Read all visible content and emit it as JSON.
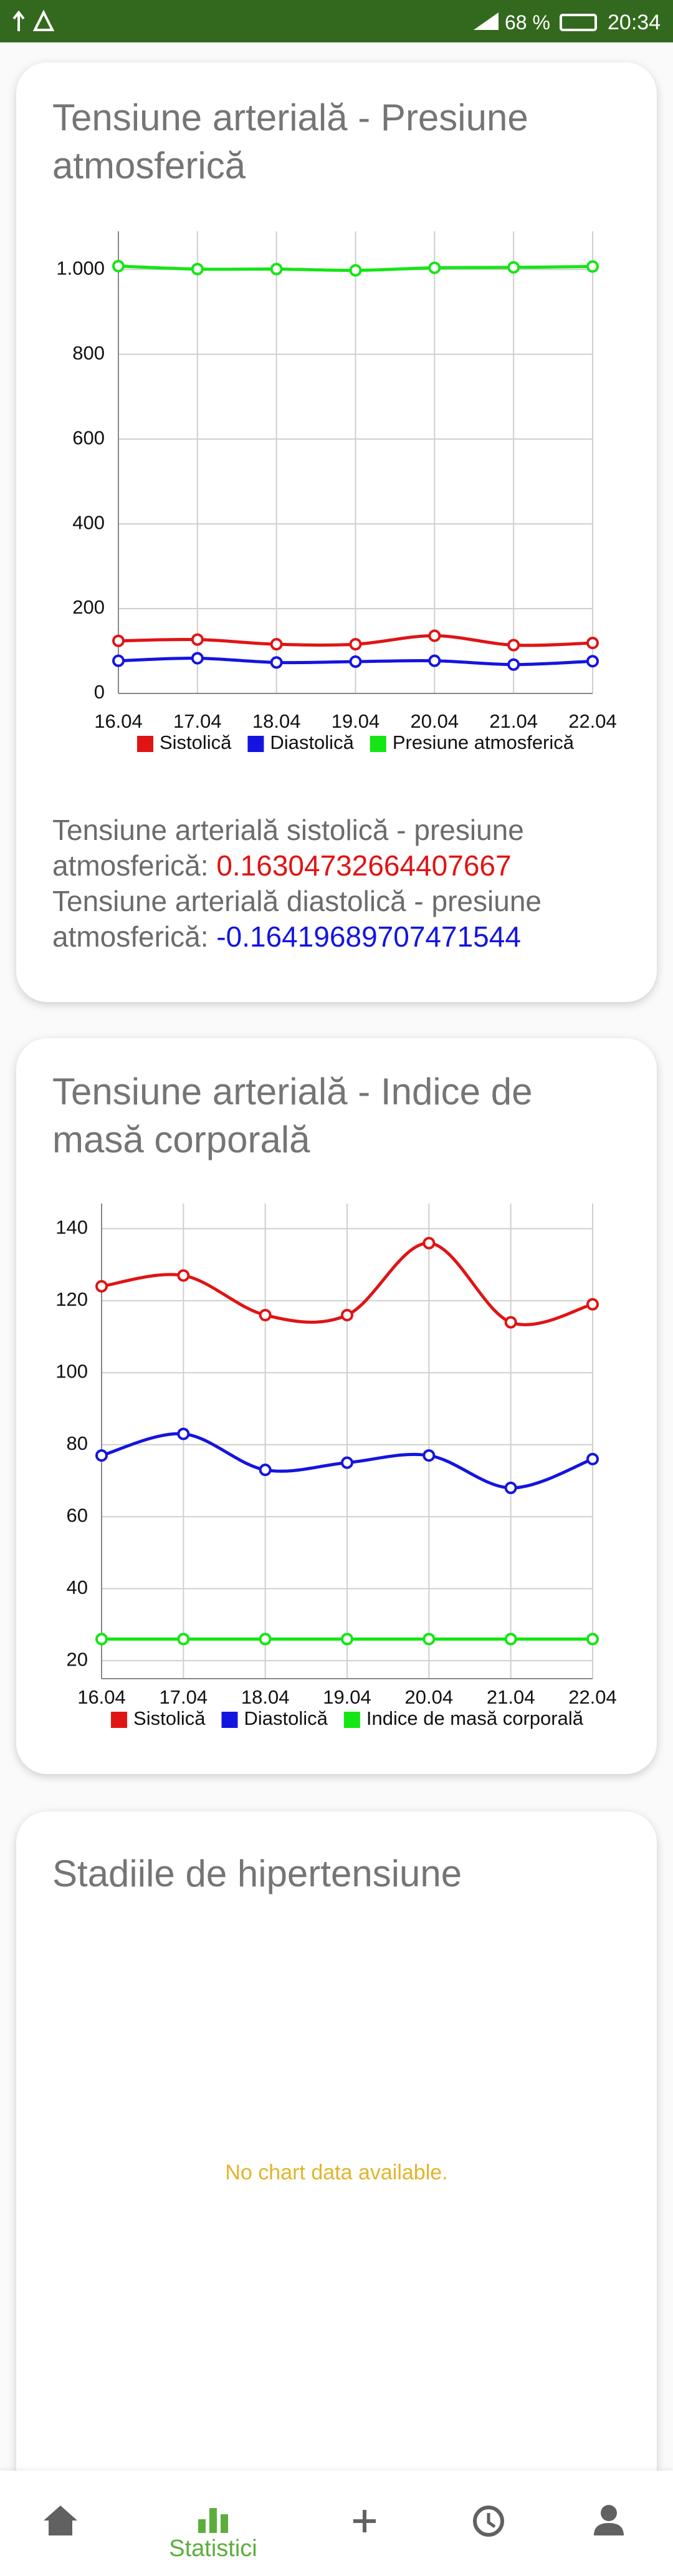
{
  "status_bar": {
    "battery": "68 %",
    "time": "20:34"
  },
  "chart_data": [
    {
      "type": "line",
      "title": "Tensiune arterială - Presiune atmosferică",
      "categories": [
        "16.04",
        "17.04",
        "18.04",
        "19.04",
        "20.04",
        "21.04",
        "22.04"
      ],
      "series": [
        {
          "name": "Sistolică",
          "color": "#e01414",
          "values": [
            124,
            127,
            116,
            116,
            136,
            114,
            119
          ]
        },
        {
          "name": "Diastolică",
          "color": "#1414e0",
          "values": [
            77,
            83,
            73,
            75,
            77,
            68,
            76
          ]
        },
        {
          "name": "Presiune atmosferică",
          "color": "#14e614",
          "values": [
            1008,
            1001,
            1001,
            998,
            1004,
            1005,
            1007
          ]
        }
      ],
      "ylim": [
        0,
        1090
      ],
      "yticks": [
        0,
        200,
        400,
        600,
        800,
        {
          "value": 1000,
          "label": "1.000"
        }
      ],
      "grid": true,
      "legend": "bottom"
    },
    {
      "type": "line",
      "title": "Tensiune arterială - Indice de masă corporală",
      "categories": [
        "16.04",
        "17.04",
        "18.04",
        "19.04",
        "20.04",
        "21.04",
        "22.04"
      ],
      "series": [
        {
          "name": "Sistolică",
          "color": "#e01414",
          "values": [
            124,
            127,
            116,
            116,
            136,
            114,
            119
          ]
        },
        {
          "name": "Diastolică",
          "color": "#1414e0",
          "values": [
            77,
            83,
            73,
            75,
            77,
            68,
            76
          ]
        },
        {
          "name": "Indice de masă corporală",
          "color": "#14e614",
          "values": [
            26,
            26,
            26,
            26,
            26,
            26,
            26
          ]
        }
      ],
      "ylim": [
        15,
        147
      ],
      "yticks": [
        20,
        40,
        60,
        80,
        100,
        120,
        140
      ],
      "grid": true,
      "legend": "bottom"
    }
  ],
  "correlations": [
    {
      "label": "Tensiune arterială sistolică - presiune atmosferică:",
      "value": 0.16304732664407667,
      "color": "#e01414"
    },
    {
      "label": "Tensiune arterială diastolică - presiune atmosferică:",
      "value": -0.16419689707471544,
      "color": "#1414e0"
    }
  ],
  "hypertension_stages": {
    "title": "Stadiile de hipertensiune",
    "empty_message": "No chart data available."
  },
  "nav": {
    "active_label": "Statistici"
  }
}
